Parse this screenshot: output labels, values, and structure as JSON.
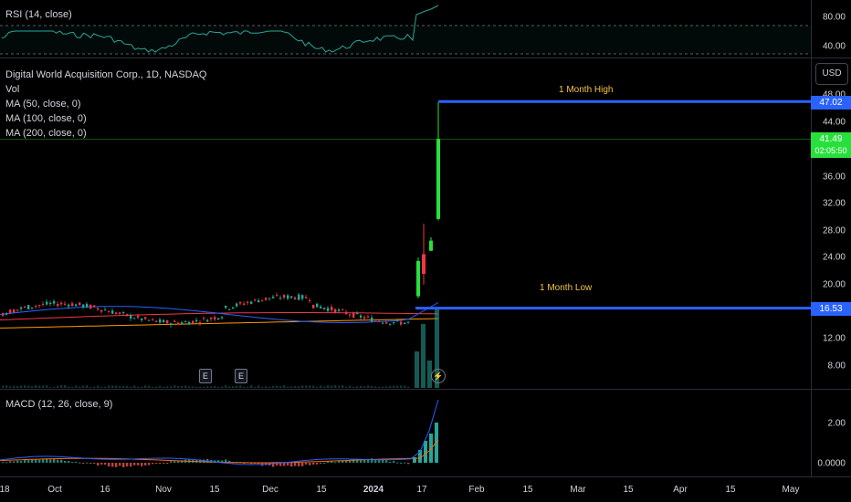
{
  "colors": {
    "up": "#22ab94",
    "down": "#f23645",
    "breakout": "#28e03c",
    "rsi": "#26a69a",
    "ma50": "#2962ff",
    "ma100": "#f23645",
    "ma200": "#ff9800",
    "level": "#2962ff",
    "macd": "#2962ff",
    "signal": "#ff6d00",
    "annot": "#f5c542"
  },
  "rsi": {
    "label": "RSI (14, close)",
    "ticks": [
      "80.00",
      "40.00"
    ]
  },
  "main": {
    "title": "Digital World Acquisition Corp., 1D, NASDAQ",
    "legend": [
      "Vol",
      "MA (50, close, 0)",
      "MA (100, close, 0)",
      "MA (200, close, 0)"
    ],
    "currency": "USD",
    "ticks": [
      "48.00",
      "44.00",
      "36.00",
      "32.00",
      "28.00",
      "24.00",
      "20.00",
      "12.00",
      "8.00"
    ],
    "high_label": "1 Month High",
    "low_label": "1 Month Low",
    "high_value": "47.02",
    "low_value": "16.53",
    "last_price": "41.49",
    "countdown": "02:05:50",
    "earnings_badge": "E",
    "bolt": "⚡"
  },
  "macd": {
    "label": "MACD (12, 26, close, 9)",
    "ticks": [
      "2.00",
      "0.0000"
    ]
  },
  "xaxis": {
    "labels": [
      "18",
      "Oct",
      "16",
      "Nov",
      "15",
      "Dec",
      "15",
      "2024",
      "17",
      "Feb",
      "15",
      "Mar",
      "15",
      "Apr",
      "15",
      "May"
    ]
  },
  "chart_data": {
    "type": "candlestick",
    "symbol": "Digital World Acquisition Corp.",
    "interval": "1D",
    "exchange": "NASDAQ",
    "ylim": [
      4,
      50
    ],
    "levels": {
      "month_high": 47.02,
      "month_low": 16.53,
      "last": 41.49
    },
    "recent_candles": [
      {
        "o": 18.3,
        "h": 24.0,
        "l": 18.0,
        "c": 23.5
      },
      {
        "o": 24.5,
        "h": 29.0,
        "l": 20.0,
        "c": 21.6
      },
      {
        "o": 25.0,
        "h": 27.0,
        "l": 25.0,
        "c": 26.5
      },
      {
        "o": 29.7,
        "h": 46.9,
        "l": 29.5,
        "c": 41.49
      }
    ],
    "macd_last": {
      "hist": 2.0,
      "macd": 3.3
    }
  }
}
